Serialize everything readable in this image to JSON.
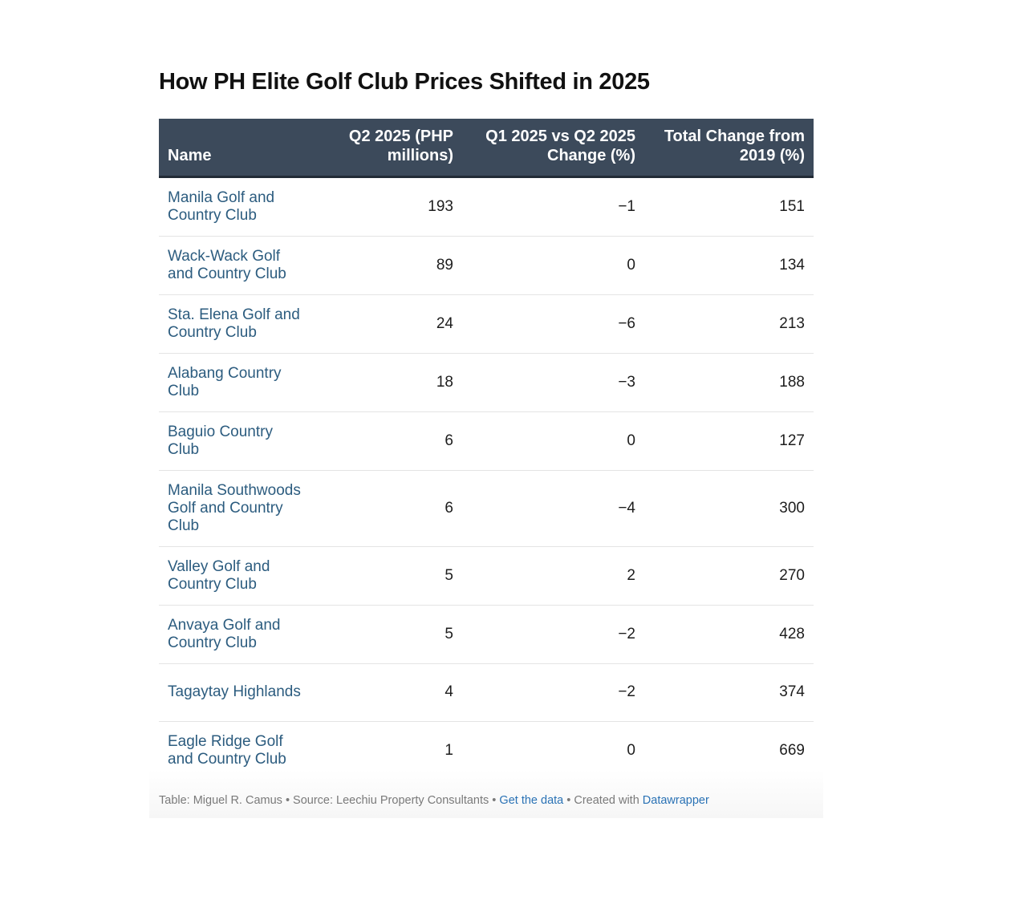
{
  "chart_data": {
    "type": "table",
    "title": "How PH Elite Golf Club Prices Shifted in 2025",
    "columns": [
      "Name",
      "Q2 2025 (PHP millions)",
      "Q1 2025 vs Q2 2025 Change (%)",
      "Total Change from 2019 (%)"
    ],
    "rows": [
      {
        "name": "Manila Golf and Country Club",
        "q2_2025": "193",
        "q1_vs_q2": "−1",
        "total_change": "151"
      },
      {
        "name": "Wack-Wack Golf and Country Club",
        "q2_2025": "89",
        "q1_vs_q2": "0",
        "total_change": "134"
      },
      {
        "name": "Sta. Elena Golf and Country Club",
        "q2_2025": "24",
        "q1_vs_q2": "−6",
        "total_change": "213"
      },
      {
        "name": "Alabang Country Club",
        "q2_2025": "18",
        "q1_vs_q2": "−3",
        "total_change": "188"
      },
      {
        "name": "Baguio Country Club",
        "q2_2025": "6",
        "q1_vs_q2": "0",
        "total_change": "127"
      },
      {
        "name": "Manila Southwoods Golf and Country Club",
        "q2_2025": "6",
        "q1_vs_q2": "−4",
        "total_change": "300"
      },
      {
        "name": "Valley Golf and Country Club",
        "q2_2025": "5",
        "q1_vs_q2": "2",
        "total_change": "270"
      },
      {
        "name": "Anvaya Golf and Country Club",
        "q2_2025": "5",
        "q1_vs_q2": "−2",
        "total_change": "428"
      },
      {
        "name": "Tagaytay Highlands",
        "q2_2025": "4",
        "q1_vs_q2": "−2",
        "total_change": "374"
      },
      {
        "name": "Eagle Ridge Golf and Country Club",
        "q2_2025": "1",
        "q1_vs_q2": "0",
        "total_change": "669"
      }
    ]
  },
  "footer": {
    "credit": "Table: Miguel R. Camus  • Source: Leechiu Property Consultants • ",
    "get_data_link": "Get the data",
    "created_with": " • Created with ",
    "datawrapper_link": "Datawrapper"
  },
  "colors": {
    "header_bg": "#3c4a5b",
    "name_text": "#2c5c7f",
    "link": "#2a72b5"
  }
}
